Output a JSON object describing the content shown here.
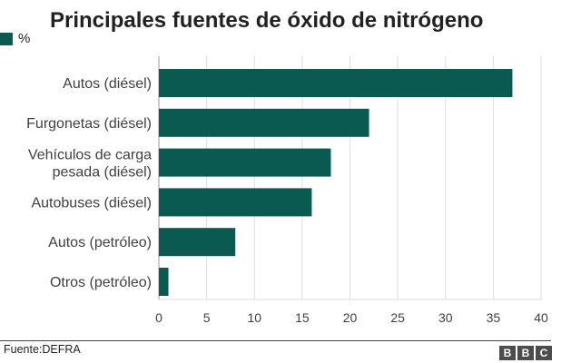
{
  "title": "Principales fuentes de óxido de nitrógeno",
  "legend": {
    "label": "%",
    "color": "#0b5a52"
  },
  "source": "Fuente:DEFRA",
  "logo": [
    "B",
    "B",
    "C"
  ],
  "chart_data": {
    "type": "bar",
    "orientation": "horizontal",
    "categories": [
      "Autos (diésel)",
      "Furgonetas (diésel)",
      "Vehículos de carga pesada (diésel)",
      "Autobuses (diésel)",
      "Autos (petróleo)",
      "Otros (petróleo)"
    ],
    "series": [
      {
        "name": "%",
        "values": [
          37,
          22,
          18,
          16,
          8,
          1
        ]
      }
    ],
    "xlim": [
      0,
      40
    ],
    "xticks": [
      0,
      5,
      10,
      15,
      20,
      25,
      30,
      35,
      40
    ],
    "grid": true,
    "bar_color": "#0b5a52",
    "legend_position": "top-left"
  }
}
